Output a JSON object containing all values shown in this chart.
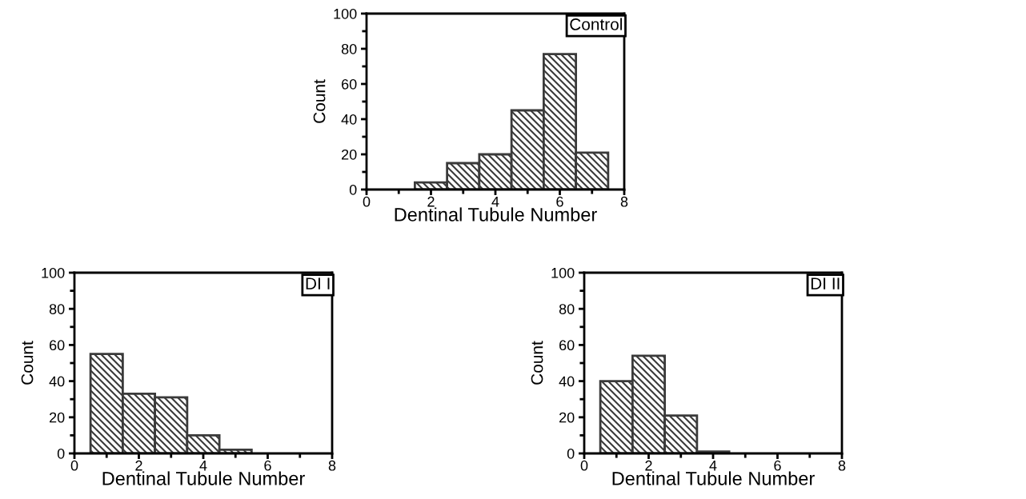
{
  "chart_data": [
    {
      "type": "histogram",
      "bins": [
        1.5,
        2.5,
        3.5,
        4.5,
        5.5,
        6.5,
        7.5
      ],
      "values": [
        4,
        15,
        20,
        45,
        77,
        21
      ],
      "color": "#3a3a3a",
      "xlabel": "Dentinal Tubule Number",
      "ylabel": "Count",
      "xlim": [
        0,
        8
      ],
      "xticks": [
        0,
        2,
        4,
        6,
        8
      ],
      "ylim": [
        0,
        100
      ],
      "yticks": [
        0,
        20,
        40,
        60,
        80,
        100
      ],
      "annotations": [
        "Control"
      ],
      "grid": false
    },
    {
      "type": "histogram",
      "bins": [
        0.5,
        1.5,
        2.5,
        3.5,
        4.5,
        5.5
      ],
      "values": [
        55,
        33,
        31,
        10,
        2
      ],
      "color": "#3a3a3a",
      "xlabel": "Dentinal Tubule Number",
      "ylabel": "Count",
      "xlim": [
        0,
        8
      ],
      "xticks": [
        0,
        2,
        4,
        6,
        8
      ],
      "ylim": [
        0,
        100
      ],
      "yticks": [
        0,
        20,
        40,
        60,
        80,
        100
      ],
      "annotations": [
        "DI I"
      ],
      "grid": false
    },
    {
      "type": "histogram",
      "bins": [
        0.5,
        1.5,
        2.5,
        3.5,
        4.5
      ],
      "values": [
        40,
        54,
        21,
        1
      ],
      "color": "#3a3a3a",
      "xlabel": "Dentinal Tubule Number",
      "ylabel": "Count",
      "xlim": [
        0,
        8
      ],
      "xticks": [
        0,
        2,
        4,
        6,
        8
      ],
      "ylim": [
        0,
        100
      ],
      "yticks": [
        0,
        20,
        40,
        60,
        80,
        100
      ],
      "annotations": [
        "DI II"
      ],
      "grid": false
    }
  ]
}
